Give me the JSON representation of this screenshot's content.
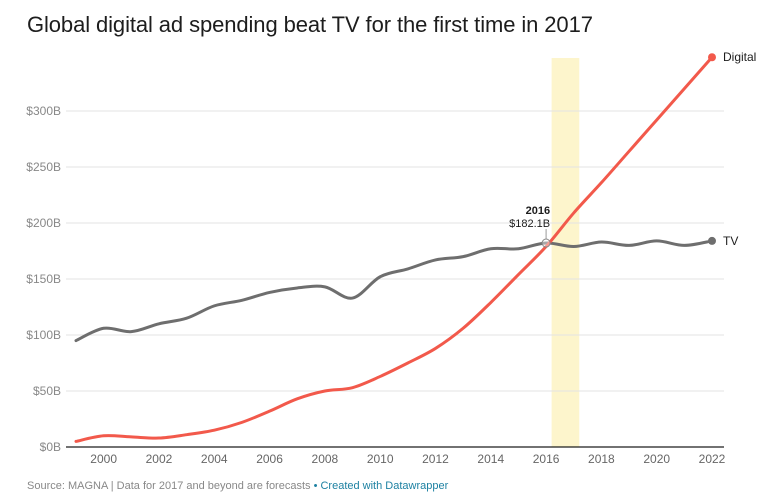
{
  "chart_data": {
    "type": "line",
    "title": "Global digital ad spending beat TV for the first time in 2017",
    "xlabel": "",
    "ylabel": "",
    "x": [
      1999,
      2000,
      2001,
      2002,
      2003,
      2004,
      2005,
      2006,
      2007,
      2008,
      2009,
      2010,
      2011,
      2012,
      2013,
      2014,
      2015,
      2016,
      2017,
      2018,
      2019,
      2020,
      2021,
      2022
    ],
    "series": [
      {
        "name": "TV",
        "color": "#6e6e6e",
        "values": [
          95,
          106,
          103,
          110,
          115,
          126,
          131,
          138,
          142,
          143,
          133,
          152,
          159,
          167,
          170,
          177,
          177,
          182.1,
          179,
          183,
          180,
          184,
          180,
          184
        ]
      },
      {
        "name": "Digital",
        "color": "#f2594b",
        "values": [
          5,
          10,
          9,
          8,
          11,
          15,
          22,
          32,
          43,
          50,
          53,
          63,
          75,
          88,
          106,
          129,
          154,
          179,
          209,
          236,
          264,
          292,
          320,
          348
        ]
      }
    ],
    "x_ticks": [
      "2000",
      "2002",
      "2004",
      "2006",
      "2008",
      "2010",
      "2012",
      "2014",
      "2016",
      "2018",
      "2020",
      "2022"
    ],
    "x_tick_values": [
      2000,
      2002,
      2004,
      2006,
      2008,
      2010,
      2012,
      2014,
      2016,
      2018,
      2020,
      2022
    ],
    "y_ticks": [
      "$0B",
      "$50B",
      "$100B",
      "$150B",
      "$200B",
      "$250B",
      "$300B"
    ],
    "y_tick_values": [
      0,
      50,
      100,
      150,
      200,
      250,
      300
    ],
    "xlim": [
      1999,
      2022
    ],
    "ylim": [
      0,
      350
    ],
    "grid": true,
    "legend": "inline-right",
    "highlight_range": {
      "from": 2016.2,
      "to": 2017.2,
      "color": "#fdf5cc"
    },
    "annotation": {
      "year": "2016",
      "value": "$182.1B",
      "x": 2016,
      "y": 182.1,
      "series": "TV"
    }
  },
  "footer": {
    "source": "Source: MAGNA | Data for 2017 and beyond are forecasts",
    "separator": " • ",
    "credit": "Created with Datawrapper"
  }
}
